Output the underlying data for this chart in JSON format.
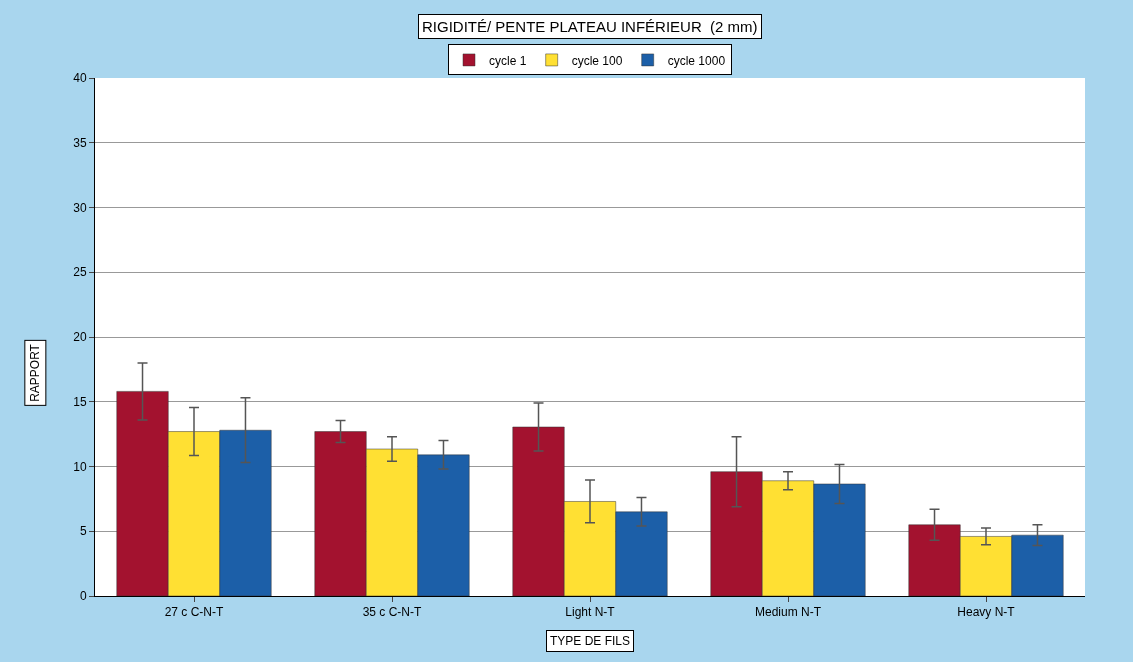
{
  "chart_data": {
    "type": "bar",
    "title": "RIGIDITÉ/ PENTE PLATEAU INFÉRIEUR  (2 mm)",
    "xlabel": "TYPE DE FILS",
    "ylabel": "RAPPORT",
    "categories": [
      "27 c C-N-T",
      "35 c C-N-T",
      "Light N-T",
      "Medium N-T",
      "Heavy N-T"
    ],
    "series": [
      {
        "name": "cycle 1",
        "color": "#a3122f",
        "values": [
          15.8,
          12.7,
          13.05,
          9.6,
          5.5
        ],
        "errors": [
          2.2,
          0.85,
          1.85,
          2.7,
          1.2
        ]
      },
      {
        "name": "cycle 100",
        "color": "#ffe033",
        "values": [
          12.7,
          11.35,
          7.3,
          8.9,
          4.6
        ],
        "errors": [
          1.85,
          0.95,
          1.65,
          0.7,
          0.65
        ]
      },
      {
        "name": "cycle 1000",
        "color": "#1c5fa8",
        "values": [
          12.8,
          10.9,
          6.5,
          8.65,
          4.7
        ],
        "errors": [
          2.5,
          1.1,
          1.1,
          1.5,
          0.8
        ]
      }
    ],
    "ylim": [
      0,
      40
    ],
    "yticks": [
      0,
      5,
      10,
      15,
      20,
      25,
      30,
      35,
      40
    ],
    "grid": "y",
    "legend": "top"
  }
}
